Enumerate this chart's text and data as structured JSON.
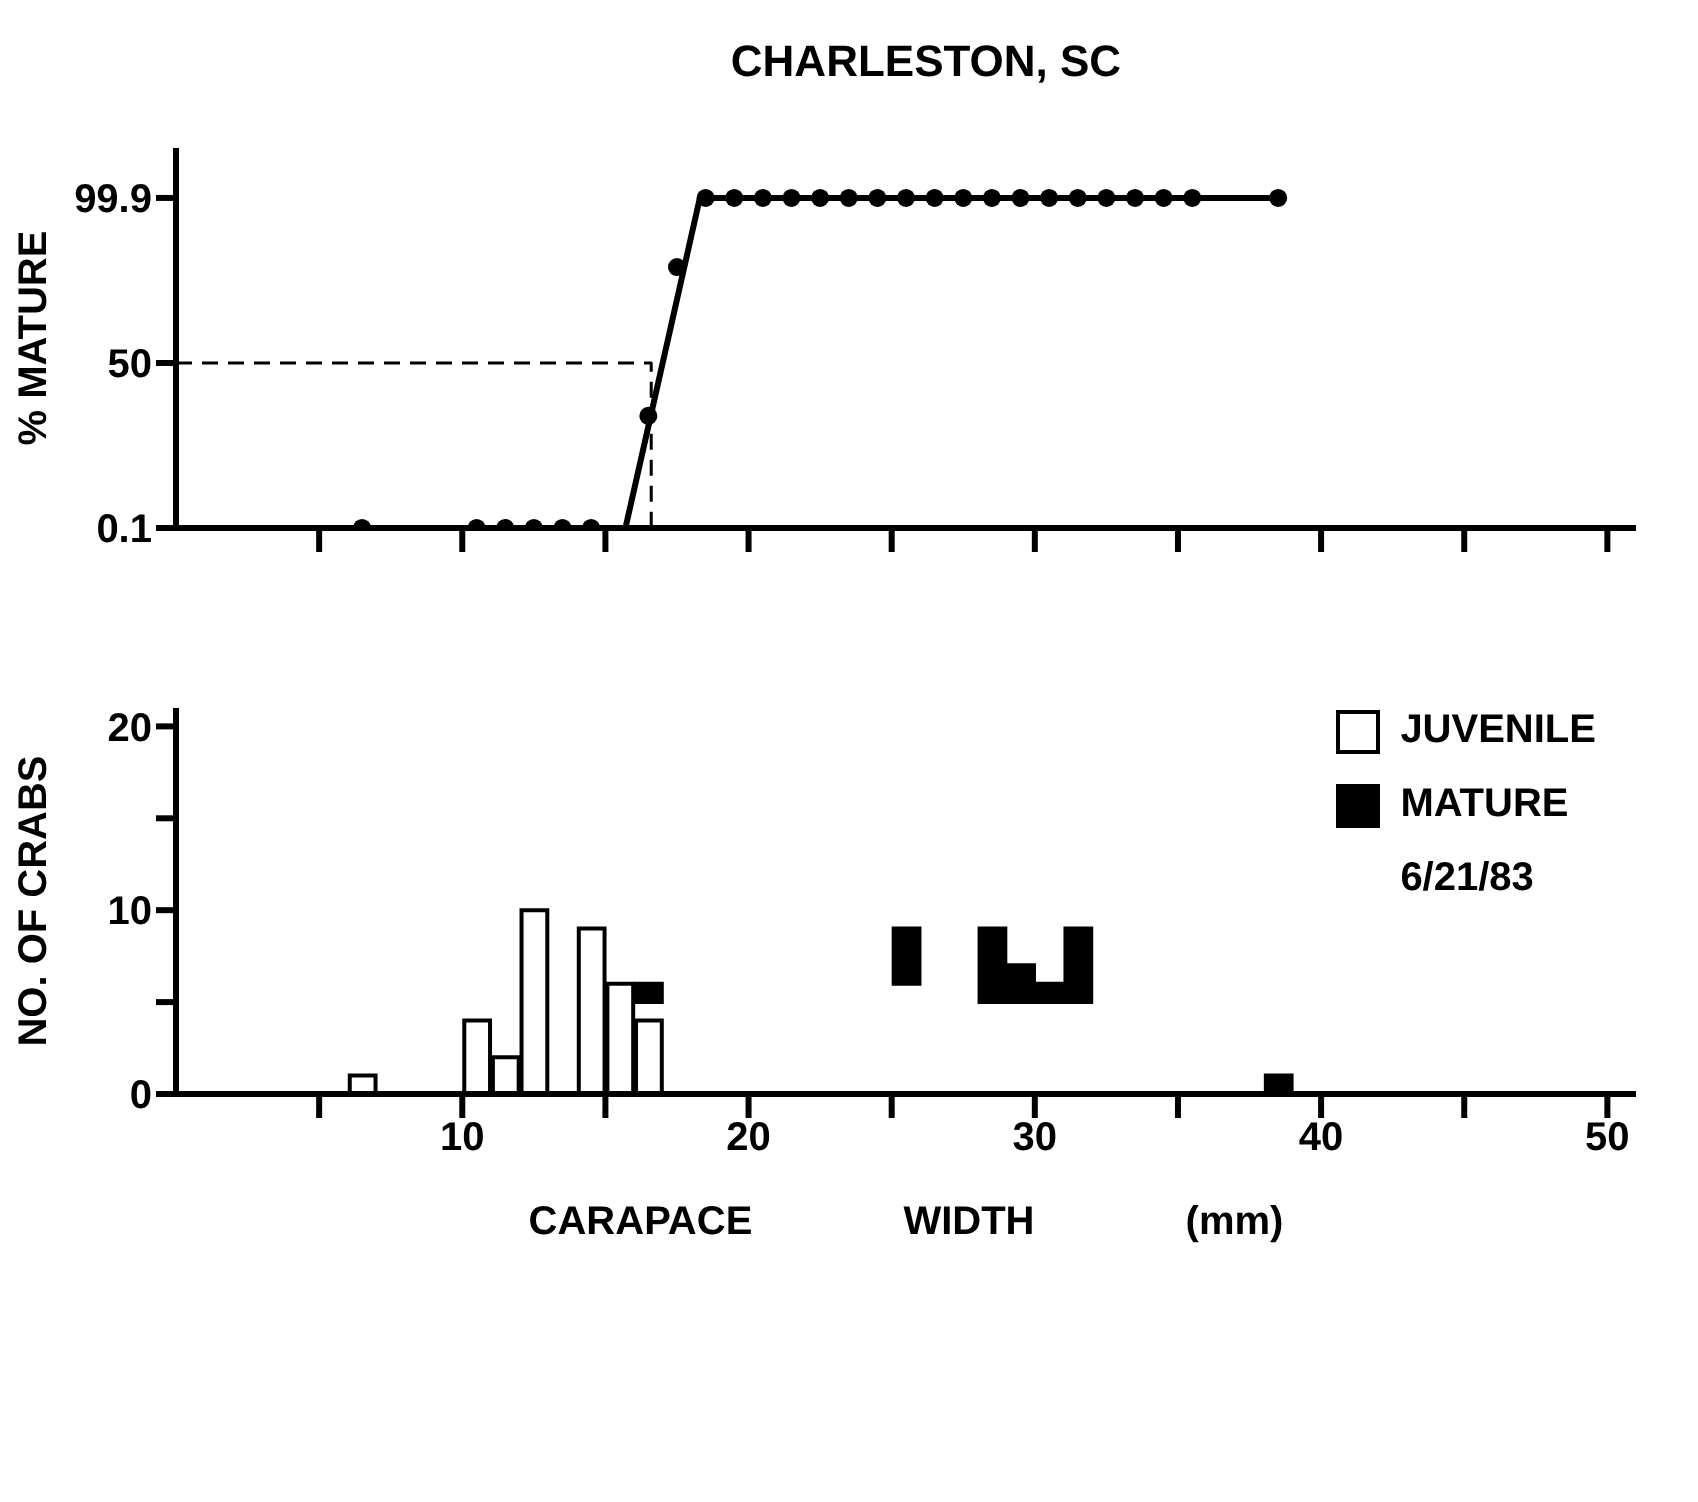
{
  "chart_data": [
    {
      "type": "line",
      "title": "CHARLESTON, SC",
      "ylabel": "% MATURE",
      "xlim": [
        0,
        51
      ],
      "xticks": [
        {
          "value": 5,
          "label": null
        },
        {
          "value": 10,
          "label": null
        },
        {
          "value": 15,
          "label": null
        },
        {
          "value": 20,
          "label": null
        },
        {
          "value": 25,
          "label": null
        },
        {
          "value": 30,
          "label": null
        },
        {
          "value": 35,
          "label": null
        },
        {
          "value": 40,
          "label": null
        },
        {
          "value": 45,
          "label": null
        },
        {
          "value": 50,
          "label": null
        }
      ],
      "ylim": [
        0.1,
        115
      ],
      "yticks": [
        0.1,
        50,
        99.9
      ],
      "tick_labels": "y",
      "series": [
        {
          "type": "scatter",
          "color": "#000000",
          "marker": "circle",
          "x": [
            6.5,
            10.5,
            11.5,
            12.5,
            13.5,
            14.5,
            16.5,
            17.5,
            18.5,
            19.5,
            20.5,
            21.5,
            22.5,
            23.5,
            24.5,
            25.5,
            26.5,
            27.5,
            28.5,
            29.5,
            30.5,
            31.5,
            32.5,
            33.5,
            34.5,
            35.5,
            38.5
          ],
          "values": [
            0.1,
            0.1,
            0.1,
            0.1,
            0.1,
            0.1,
            34,
            79,
            99.9,
            99.9,
            99.9,
            99.9,
            99.9,
            99.9,
            99.9,
            99.9,
            99.9,
            99.9,
            99.9,
            99.9,
            99.9,
            99.9,
            99.9,
            99.9,
            99.9,
            99.9,
            99.9
          ]
        },
        {
          "color": "#000000",
          "x": [
            15.7,
            18.3,
            38.5
          ],
          "values": [
            0.1,
            99.9,
            99.9
          ]
        },
        {
          "color": "#000000",
          "line_style": "dashed",
          "x": [
            0,
            16.6,
            16.6
          ],
          "values": [
            50,
            50,
            0.1
          ]
        }
      ]
    },
    {
      "type": "bar",
      "xlabel": "CARAPACE WIDTH (mm)",
      "ylabel": "NO. OF CRABS",
      "xlim": [
        0,
        51
      ],
      "xticks": [
        {
          "value": 5,
          "label": null
        },
        10,
        {
          "value": 15,
          "label": null
        },
        20,
        {
          "value": 25,
          "label": null
        },
        30,
        {
          "value": 35,
          "label": null
        },
        40,
        {
          "value": 45,
          "label": null
        },
        50
      ],
      "ylim": [
        0,
        21
      ],
      "yticks": [
        0,
        {
          "value": 5,
          "label": null
        },
        10,
        {
          "value": 15,
          "label": null
        },
        20
      ],
      "legend": "top right",
      "annotations": [
        "6/21/83"
      ],
      "series": [
        {
          "name": "JUVENILE",
          "color": "#ffffff",
          "x": [
            6.5,
            10.5,
            11.5,
            12.5,
            14.5,
            15.5,
            16.5
          ],
          "values": [
            1,
            4,
            2,
            10,
            9,
            6,
            4
          ]
        },
        {
          "name": "MATURE",
          "color": "#000000",
          "x": [
            16.5,
            25.5,
            28.5,
            29.5,
            30.5,
            31.5,
            38.5
          ],
          "values": [
            1,
            3,
            4,
            2,
            1,
            4,
            1
          ],
          "base": [
            5,
            6,
            5,
            5,
            5,
            5,
            0
          ]
        }
      ]
    }
  ]
}
